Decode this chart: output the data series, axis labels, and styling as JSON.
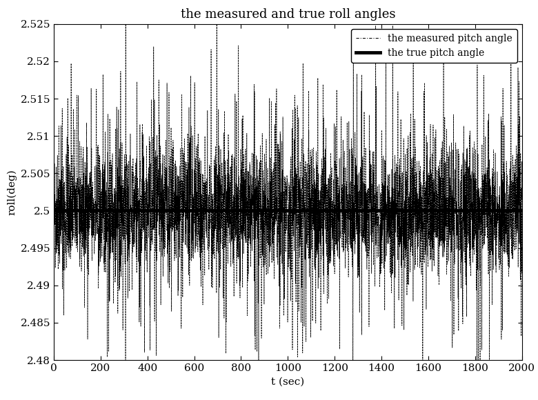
{
  "title": "the measured and true roll angles",
  "xlabel": "t (sec)",
  "ylabel": "roll(deg)",
  "xlim": [
    0,
    2000
  ],
  "ylim": [
    2.48,
    2.525
  ],
  "yticks": [
    2.48,
    2.485,
    2.49,
    2.495,
    2.5,
    2.505,
    2.51,
    2.515,
    2.52,
    2.525
  ],
  "ytick_labels": [
    "2.48",
    "2.485",
    "2.49",
    "2.495",
    "2.5",
    "2.505",
    "2.51",
    "2.515",
    "2.52",
    "2.525"
  ],
  "xticks": [
    0,
    200,
    400,
    600,
    800,
    1000,
    1200,
    1400,
    1600,
    1800,
    2000
  ],
  "true_value": 2.5,
  "noise_std": 0.004,
  "n_points": 4000,
  "seed": 42,
  "measured_color": "#000000",
  "true_color": "#000000",
  "measured_lw": 0.5,
  "true_lw": 3.5,
  "legend_measured": "the measured pitch angle",
  "legend_true": "the true pitch angle",
  "bg_color": "#ffffff",
  "title_fontsize": 13,
  "label_fontsize": 11,
  "tick_fontsize": 11,
  "legend_fontsize": 10
}
